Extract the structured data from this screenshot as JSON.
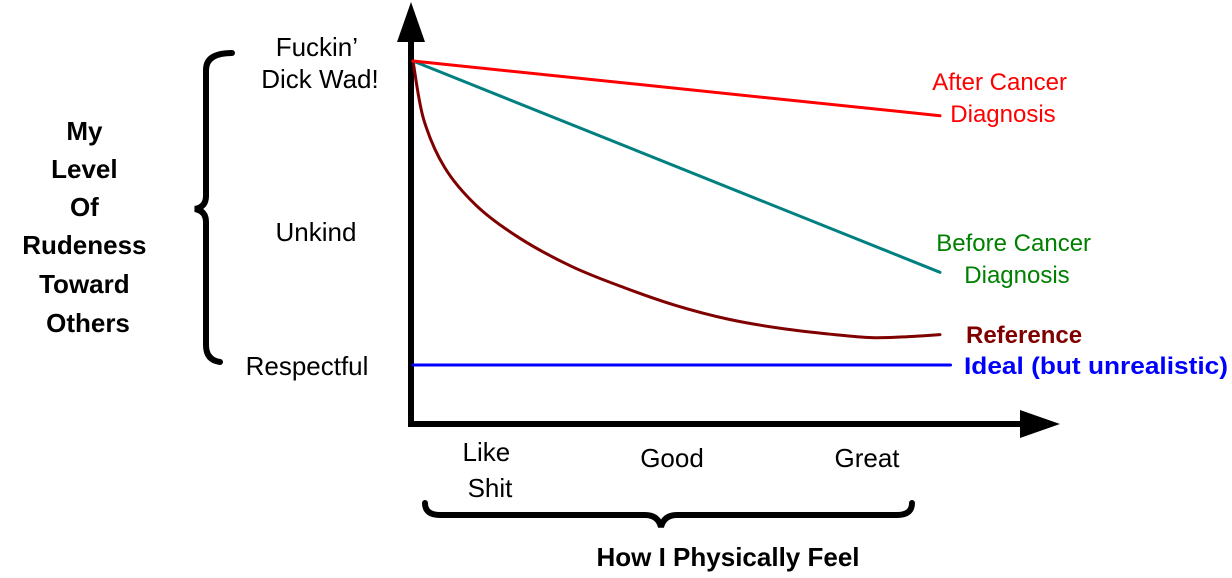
{
  "chart_data": {
    "type": "line",
    "title": "",
    "ylabel": [
      "My",
      "Level",
      "Of",
      "Rudeness",
      "Toward",
      "Others"
    ],
    "xlabel": "How I Physically Feel",
    "xlim": [
      0,
      1
    ],
    "ylim": [
      0,
      2
    ],
    "grid": false,
    "y_ticks": [
      {
        "value": 0,
        "lines": [
          "Respectful"
        ]
      },
      {
        "value": 1,
        "lines": [
          "Unkind"
        ]
      },
      {
        "value": 2,
        "lines": [
          "Fuckin’",
          "Dick Wad!"
        ]
      }
    ],
    "x_ticks": [
      {
        "value": 0.15,
        "lines": [
          "Like",
          "Shit"
        ]
      },
      {
        "value": 0.49,
        "lines": [
          "Good"
        ]
      },
      {
        "value": 0.86,
        "lines": [
          "Great"
        ]
      }
    ],
    "series": [
      {
        "name": "After Cancer Diagnosis",
        "label_lines": [
          "After Cancer",
          "Diagnosis"
        ],
        "line_color": "#ff0000",
        "label_color": "#ff0000",
        "bold": false,
        "x": [
          0,
          1
        ],
        "y": [
          2.0,
          1.64
        ]
      },
      {
        "name": "Before Cancer Diagnosis",
        "label_lines": [
          "Before Cancer",
          "Diagnosis"
        ],
        "line_color": "#008080",
        "label_color": "#008000",
        "bold": false,
        "x": [
          0,
          1
        ],
        "y": [
          2.0,
          0.61
        ]
      },
      {
        "name": "Reference",
        "label_lines": [
          "Reference"
        ],
        "line_color": "#800000",
        "label_color": "#800000",
        "bold": true,
        "x": [
          0,
          0.02,
          0.06,
          0.12,
          0.2,
          0.3,
          0.4,
          0.5,
          0.6,
          0.7,
          0.8,
          0.87,
          0.93,
          1.0
        ],
        "y": [
          2.0,
          1.62,
          1.3,
          1.05,
          0.84,
          0.65,
          0.51,
          0.39,
          0.3,
          0.24,
          0.2,
          0.18,
          0.185,
          0.2
        ]
      },
      {
        "name": "Ideal (but unrealistic)",
        "label_lines": [
          "Ideal (but unrealistic)"
        ],
        "line_color": "#0000ff",
        "label_color": "#0000ff",
        "bold": true,
        "x": [
          0,
          1.02
        ],
        "y": [
          0,
          0
        ]
      }
    ]
  }
}
